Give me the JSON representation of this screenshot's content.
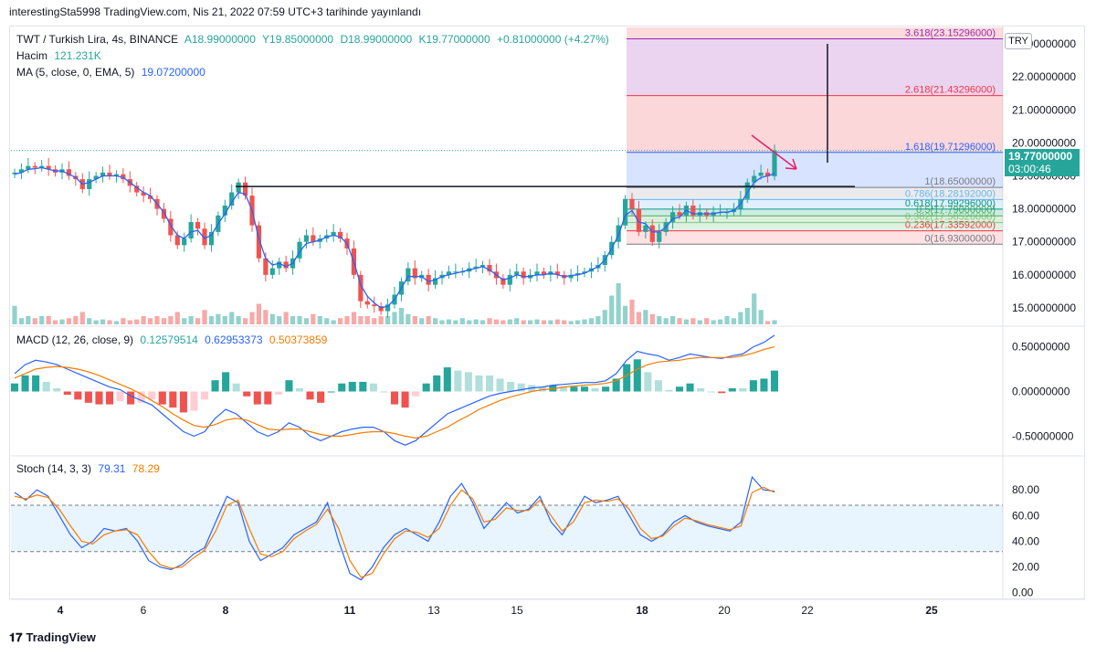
{
  "header": {
    "published": "interestingSta5998 TradingView.com, Nis 21, 2022 07:59 UTC+3 tarihinde yayınlandı"
  },
  "legend": {
    "symbol": "TWT / Turkish Lira, 4s, BINANCE",
    "open": "A18.99000000",
    "high": "Y19.85000000",
    "low": "D18.99000000",
    "close": "K19.77000000",
    "change": "+0.81000000 (+4.27%)",
    "volume_label": "Hacim",
    "volume_value": "121.231K",
    "ma_label": "MA (5, close, 0, EMA, 5)",
    "ma_value": "19.07200000",
    "macd_label": "MACD (12, 26, close, 9)",
    "macd_hist": "0.12579514",
    "macd_line": "0.62953373",
    "macd_signal": "0.50373859",
    "stoch_label": "Stoch (14, 3, 3)",
    "stoch_k": "79.31",
    "stoch_d": "78.29"
  },
  "currency": "TRY",
  "price_tag": {
    "price": "19.77000000",
    "countdown": "03:00:46"
  },
  "footer": {
    "brand": "TradingView"
  },
  "colors": {
    "up": "#26a69a",
    "down": "#ef5350",
    "ma": "#2962ff",
    "macd": "#2962ff",
    "signal": "#f57c00"
  },
  "chart_data": [
    {
      "type": "candlestick",
      "title": "TWT / Turkish Lira, 4s, BINANCE",
      "ylim": [
        14.5,
        23.5
      ],
      "y_ticks": [
        "23.00000000",
        "22.00000000",
        "21.00000000",
        "20.00000000",
        "19.00000000",
        "18.00000000",
        "17.00000000",
        "16.00000000",
        "15.00000000"
      ],
      "x_ticks": [
        "4",
        "6",
        "8",
        "11",
        "13",
        "15",
        "18",
        "20",
        "22",
        "25"
      ],
      "close": [
        19.1,
        19.2,
        19.3,
        19.25,
        19.3,
        19.2,
        19.1,
        19.2,
        19.0,
        18.9,
        18.6,
        18.9,
        19.0,
        19.1,
        19.0,
        19.05,
        18.9,
        18.7,
        18.5,
        18.4,
        18.3,
        18.0,
        17.7,
        17.2,
        16.9,
        17.1,
        17.6,
        17.4,
        16.9,
        17.3,
        17.8,
        18.1,
        18.5,
        18.8,
        18.4,
        17.5,
        16.5,
        16.0,
        16.2,
        16.4,
        16.2,
        16.5,
        17.0,
        17.2,
        17.0,
        17.1,
        17.2,
        17.3,
        17.1,
        16.8,
        16.0,
        15.2,
        15.1,
        15.05,
        14.9,
        15.1,
        15.4,
        15.8,
        16.2,
        15.9,
        16.0,
        15.7,
        15.9,
        16.0,
        16.1,
        16.1,
        16.1,
        16.2,
        16.25,
        16.3,
        16.1,
        15.9,
        15.7,
        16.0,
        16.1,
        15.9,
        16.0,
        16.1,
        16.0,
        16.1,
        16.0,
        15.9,
        16.0,
        16.05,
        16.1,
        16.2,
        16.3,
        16.6,
        17.0,
        17.5,
        18.3,
        18.0,
        17.3,
        17.5,
        17.0,
        17.3,
        17.6,
        17.9,
        17.8,
        18.1,
        17.8,
        17.9,
        17.8,
        17.9,
        17.9,
        17.9,
        18.0,
        18.3,
        18.8,
        19.0,
        19.1,
        18.99,
        19.77
      ],
      "ma": [
        19.05,
        19.1,
        19.2,
        19.22,
        19.25,
        19.2,
        19.15,
        19.15,
        19.05,
        18.95,
        18.75,
        18.8,
        18.9,
        19.0,
        19.0,
        19.0,
        18.95,
        18.8,
        18.65,
        18.5,
        18.4,
        18.15,
        17.9,
        17.5,
        17.2,
        17.1,
        17.3,
        17.35,
        17.1,
        17.2,
        17.55,
        17.85,
        18.2,
        18.5,
        18.45,
        17.95,
        17.1,
        16.5,
        16.3,
        16.35,
        16.25,
        16.35,
        16.7,
        16.95,
        17.0,
        17.05,
        17.15,
        17.2,
        17.15,
        16.95,
        16.4,
        15.7,
        15.35,
        15.15,
        15.0,
        15.05,
        15.25,
        15.6,
        15.95,
        15.95,
        15.95,
        15.8,
        15.85,
        15.95,
        16.0,
        16.05,
        16.1,
        16.15,
        16.2,
        16.25,
        16.15,
        16.0,
        15.85,
        15.9,
        16.0,
        15.95,
        15.95,
        16.0,
        16.0,
        16.05,
        16.0,
        15.95,
        15.98,
        16.0,
        16.05,
        16.15,
        16.25,
        16.45,
        16.8,
        17.2,
        17.8,
        17.95,
        17.6,
        17.55,
        17.3,
        17.3,
        17.45,
        17.7,
        17.75,
        17.95,
        17.85,
        17.85,
        17.85,
        17.85,
        17.9,
        17.9,
        17.95,
        18.15,
        18.5,
        18.8,
        18.95,
        19.0,
        19.07
      ],
      "volume": [
        0.45,
        0.15,
        0.2,
        0.15,
        0.2,
        0.2,
        0.1,
        0.12,
        0.15,
        0.2,
        0.3,
        0.15,
        0.1,
        0.12,
        0.1,
        0.08,
        0.15,
        0.1,
        0.12,
        0.2,
        0.15,
        0.2,
        0.15,
        0.2,
        0.3,
        0.15,
        0.2,
        0.15,
        0.35,
        0.2,
        0.25,
        0.2,
        0.3,
        0.2,
        0.15,
        0.3,
        0.5,
        0.35,
        0.25,
        0.2,
        0.3,
        0.2,
        0.2,
        0.15,
        0.25,
        0.2,
        0.15,
        0.1,
        0.15,
        0.2,
        0.3,
        0.2,
        0.2,
        0.15,
        0.2,
        0.2,
        0.3,
        0.4,
        0.25,
        0.2,
        0.15,
        0.2,
        0.15,
        0.1,
        0.12,
        0.1,
        0.15,
        0.1,
        0.12,
        0.1,
        0.15,
        0.12,
        0.1,
        0.12,
        0.15,
        0.1,
        0.1,
        0.12,
        0.1,
        0.1,
        0.12,
        0.1,
        0.08,
        0.1,
        0.12,
        0.15,
        0.2,
        0.35,
        0.7,
        1.0,
        0.45,
        0.6,
        0.3,
        0.35,
        0.25,
        0.2,
        0.15,
        0.2,
        0.15,
        0.12,
        0.15,
        0.1,
        0.15,
        0.1,
        0.12,
        0.2,
        0.15,
        0.3,
        0.4,
        0.75,
        0.35,
        0.08,
        0.1
      ],
      "fib_levels": [
        {
          "label": "0(16.93000000)",
          "value": 16.93,
          "color": "#787b86"
        },
        {
          "label": "0.236(17.33592000)",
          "value": 17.336,
          "color": "#f23645"
        },
        {
          "label": "0.382(17.58526000)",
          "value": 17.585,
          "color": "#81c784"
        },
        {
          "label": "0.5(17.79000000)",
          "value": 17.79,
          "color": "#4caf50"
        },
        {
          "label": "0.618(17.99296000)",
          "value": 17.993,
          "color": "#089981"
        },
        {
          "label": "0.786(18.28192000)",
          "value": 18.282,
          "color": "#64b5f6"
        },
        {
          "label": "1(18.65000000)",
          "value": 18.65,
          "color": "#787b86"
        },
        {
          "label": "1.618(19.71296000)",
          "value": 19.713,
          "color": "#2962ff"
        },
        {
          "label": "2.618(21.43296000)",
          "value": 21.433,
          "color": "#f23645"
        },
        {
          "label": "3.618(23.15296000)",
          "value": 23.153,
          "color": "#9c27b0"
        }
      ]
    },
    {
      "type": "line",
      "title": "MACD (12, 26, close, 9)",
      "ylim": [
        -0.7,
        0.7
      ],
      "y_ticks": [
        "0.50000000",
        "0.00000000",
        "-0.50000000"
      ],
      "series": [
        {
          "name": "MACD",
          "values": [
            0.2,
            0.3,
            0.35,
            0.33,
            0.3,
            0.25,
            0.2,
            0.15,
            0.1,
            0.05,
            0.02,
            -0.05,
            -0.1,
            -0.15,
            -0.25,
            -0.35,
            -0.45,
            -0.5,
            -0.45,
            -0.3,
            -0.2,
            -0.25,
            -0.35,
            -0.45,
            -0.5,
            -0.45,
            -0.35,
            -0.4,
            -0.5,
            -0.55,
            -0.5,
            -0.45,
            -0.42,
            -0.4,
            -0.4,
            -0.45,
            -0.55,
            -0.6,
            -0.55,
            -0.45,
            -0.35,
            -0.25,
            -0.2,
            -0.15,
            -0.1,
            -0.05,
            -0.02,
            0.0,
            0.02,
            0.04,
            0.05,
            0.07,
            0.08,
            0.09,
            0.1,
            0.1,
            0.12,
            0.2,
            0.35,
            0.45,
            0.42,
            0.4,
            0.35,
            0.38,
            0.42,
            0.4,
            0.38,
            0.37,
            0.4,
            0.42,
            0.5,
            0.55,
            0.63
          ]
        },
        {
          "name": "Signal",
          "values": [
            0.15,
            0.2,
            0.25,
            0.27,
            0.28,
            0.27,
            0.25,
            0.22,
            0.18,
            0.13,
            0.08,
            0.03,
            -0.03,
            -0.1,
            -0.17,
            -0.25,
            -0.32,
            -0.38,
            -0.4,
            -0.37,
            -0.32,
            -0.3,
            -0.32,
            -0.37,
            -0.42,
            -0.43,
            -0.42,
            -0.42,
            -0.45,
            -0.48,
            -0.5,
            -0.5,
            -0.48,
            -0.46,
            -0.45,
            -0.45,
            -0.47,
            -0.5,
            -0.52,
            -0.5,
            -0.45,
            -0.4,
            -0.33,
            -0.27,
            -0.2,
            -0.15,
            -0.1,
            -0.06,
            -0.03,
            0.0,
            0.02,
            0.03,
            0.05,
            0.06,
            0.07,
            0.08,
            0.09,
            0.12,
            0.18,
            0.25,
            0.3,
            0.33,
            0.34,
            0.35,
            0.37,
            0.38,
            0.38,
            0.38,
            0.38,
            0.4,
            0.43,
            0.47,
            0.5
          ]
        }
      ]
    },
    {
      "type": "line",
      "title": "Stoch (14, 3, 3)",
      "ylim": [
        0,
        100
      ],
      "y_ticks": [
        "80.00",
        "60.00",
        "40.00",
        "20.00",
        "0.00"
      ],
      "series": [
        {
          "name": "%K",
          "values": [
            78,
            72,
            80,
            75,
            60,
            45,
            35,
            40,
            50,
            48,
            50,
            40,
            25,
            20,
            18,
            22,
            30,
            35,
            55,
            75,
            70,
            40,
            25,
            30,
            35,
            45,
            50,
            55,
            70,
            40,
            15,
            10,
            20,
            35,
            45,
            50,
            45,
            40,
            55,
            75,
            85,
            70,
            50,
            60,
            70,
            62,
            65,
            75,
            55,
            45,
            60,
            75,
            70,
            72,
            75,
            60,
            45,
            40,
            45,
            55,
            60,
            55,
            52,
            50,
            48,
            55,
            90,
            80,
            79
          ]
        },
        {
          "name": "%D",
          "values": [
            75,
            73,
            76,
            74,
            65,
            52,
            40,
            38,
            45,
            48,
            49,
            45,
            32,
            22,
            19,
            20,
            27,
            33,
            48,
            68,
            72,
            50,
            30,
            28,
            32,
            42,
            48,
            53,
            65,
            50,
            25,
            12,
            15,
            30,
            42,
            48,
            47,
            43,
            50,
            68,
            80,
            73,
            55,
            57,
            66,
            64,
            64,
            72,
            60,
            48,
            55,
            70,
            72,
            71,
            73,
            65,
            50,
            42,
            44,
            52,
            58,
            56,
            53,
            51,
            49,
            52,
            78,
            82,
            78
          ]
        }
      ]
    }
  ]
}
